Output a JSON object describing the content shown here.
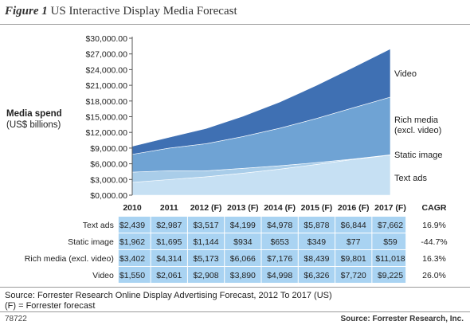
{
  "figure": {
    "number": "Figure 1",
    "title": "US Interactive Display Media Forecast"
  },
  "chart_data": {
    "type": "area",
    "stacked": true,
    "title": "US Interactive Display Media Forecast",
    "ylabel_bold": "Media spend",
    "ylabel_sub": "(US$ billions)",
    "ylim": [
      0,
      30000
    ],
    "yticks": [
      "$0,000.00",
      "$3,000.00",
      "$6,000.00",
      "$9,000.00",
      "$12,000.00",
      "$15,000.00",
      "$18,000.00",
      "$21,000.00",
      "$24,000.00",
      "$27,000.00",
      "$30,000.00"
    ],
    "ytick_values": [
      0,
      3000,
      6000,
      9000,
      12000,
      15000,
      18000,
      21000,
      24000,
      27000,
      30000
    ],
    "categories": [
      "2010",
      "2011",
      "2012 (F)",
      "2013 (F)",
      "2014 (F)",
      "2015 (F)",
      "2016 (F)",
      "2017 (F)"
    ],
    "cagr_header": "CAGR",
    "series": [
      {
        "name": "Text ads",
        "label": "Text ads",
        "values": [
          2439,
          2987,
          3517,
          4199,
          4978,
          5878,
          6844,
          7662
        ],
        "display": [
          "$2,439",
          "$2,987",
          "$3,517",
          "$4,199",
          "$4,978",
          "$5,878",
          "$6,844",
          "$7,662"
        ],
        "cagr": "16.9%",
        "color": "#c6e0f3"
      },
      {
        "name": "Static image",
        "label": "Static image",
        "values": [
          1962,
          1695,
          1144,
          934,
          653,
          349,
          77,
          59
        ],
        "display": [
          "$1,962",
          "$1,695",
          "$1,144",
          "$934",
          "$653",
          "$349",
          "$77",
          "$59"
        ],
        "cagr": "-44.7%",
        "color": "#a9cde9"
      },
      {
        "name": "Rich media (excl. video)",
        "label": "Rich media (excl. video)",
        "values": [
          3402,
          4314,
          5173,
          6066,
          7176,
          8439,
          9801,
          11018
        ],
        "display": [
          "$3,402",
          "$4,314",
          "$5,173",
          "$6,066",
          "$7,176",
          "$8,439",
          "$9,801",
          "$11,018"
        ],
        "cagr": "16.3%",
        "color": "#6fa3d4"
      },
      {
        "name": "Video",
        "label": "Video",
        "values": [
          1550,
          2061,
          2908,
          3890,
          4998,
          6326,
          7720,
          9225
        ],
        "display": [
          "$1,550",
          "$2,061",
          "$2,908",
          "$3,890",
          "$4,998",
          "$6,326",
          "$7,720",
          "$9,225"
        ],
        "cagr": "26.0%",
        "color": "#3f70b3"
      }
    ],
    "area_labels": {
      "video": "Video",
      "rich_1": "Rich media",
      "rich_2": "(excl. video)",
      "static": "Static image",
      "text": "Text ads"
    },
    "grid": false,
    "table_fill": "#a9d3f2"
  },
  "source_note": {
    "line1": "Source: Forrester Research Online Display Advertising Forecast, 2012 To 2017 (US)",
    "line2": "(F) = Forrester forecast"
  },
  "footer": {
    "id": "78722",
    "source": "Source: Forrester Research, Inc."
  }
}
